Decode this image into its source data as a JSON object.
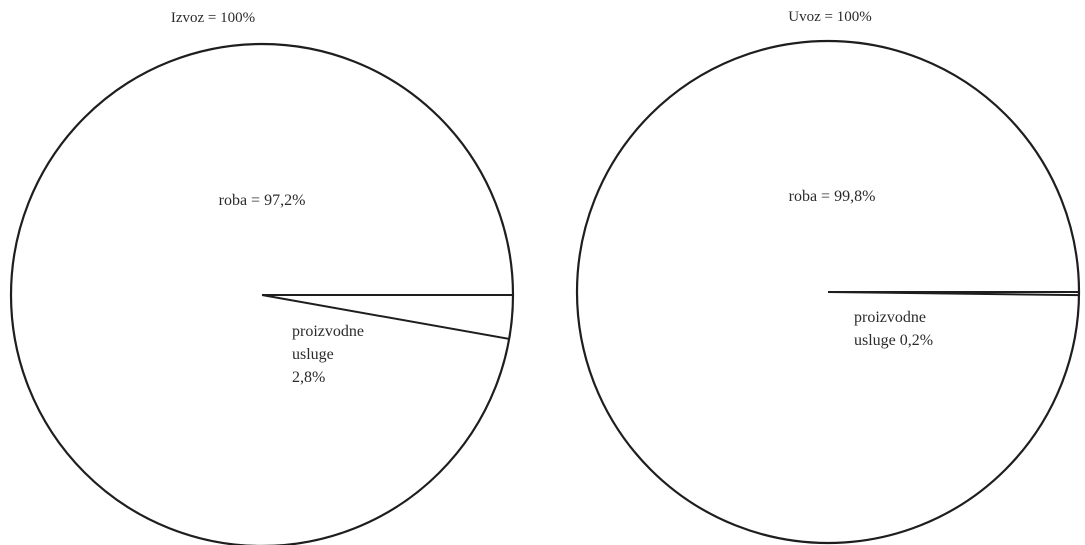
{
  "chart_data": [
    {
      "type": "pie",
      "title": "Izvoz = 100%",
      "slices": [
        {
          "label": "roba",
          "value": 97.2,
          "text_lines": [
            "roba = 97,2%"
          ]
        },
        {
          "label": "proizvodne usluge",
          "value": 2.8,
          "text_lines": [
            "proizvodne",
            "usluge",
            "2,8%"
          ]
        }
      ],
      "colors": {
        "fill": "#ffffff",
        "stroke": "#1e1e1e"
      }
    },
    {
      "type": "pie",
      "title": "Uvoz = 100%",
      "slices": [
        {
          "label": "roba",
          "value": 99.8,
          "text_lines": [
            "roba = 99,8%"
          ]
        },
        {
          "label": "proizvodne usluge",
          "value": 0.2,
          "text_lines": [
            "proizvodne",
            "usluge 0,2%"
          ]
        }
      ],
      "colors": {
        "fill": "#ffffff",
        "stroke": "#1e1e1e"
      }
    }
  ]
}
